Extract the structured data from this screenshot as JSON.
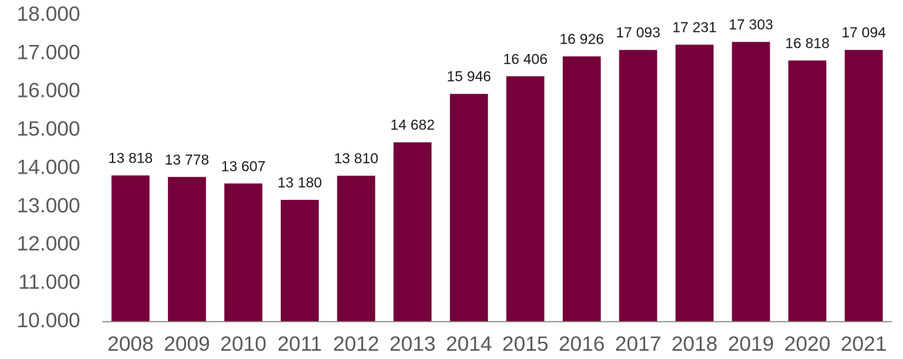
{
  "chart_data": {
    "type": "bar",
    "categories": [
      "2008",
      "2009",
      "2010",
      "2011",
      "2012",
      "2013",
      "2014",
      "2015",
      "2016",
      "2017",
      "2018",
      "2019",
      "2020",
      "2021"
    ],
    "values": [
      13818,
      13778,
      13607,
      13180,
      13810,
      14682,
      15946,
      16406,
      16926,
      17093,
      17231,
      17303,
      16818,
      17094
    ],
    "value_labels": [
      "13 818",
      "13 778",
      "13 607",
      "13 180",
      "13 810",
      "14 682",
      "15 946",
      "16 406",
      "16 926",
      "17 093",
      "17 231",
      "17 303",
      "16 818",
      "17 094"
    ],
    "ylim": [
      10000,
      18000
    ],
    "yticks": [
      10000,
      11000,
      12000,
      13000,
      14000,
      15000,
      16000,
      17000,
      18000
    ],
    "ytick_labels": [
      "10.000",
      "11.000",
      "12.000",
      "13.000",
      "14.000",
      "15.000",
      "16.000",
      "17.000",
      "18.000"
    ],
    "title": "",
    "xlabel": "",
    "ylabel": "",
    "grid": false,
    "legend": "none",
    "bar_color": "#75003A",
    "axis_color": "#808080"
  }
}
